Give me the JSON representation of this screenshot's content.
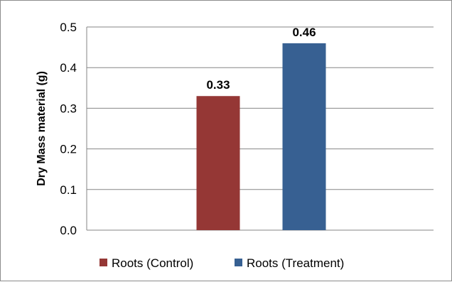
{
  "chart_data": {
    "type": "bar",
    "categories": [
      "Roots (Control)",
      "Roots (Treatment)"
    ],
    "values": [
      0.33,
      0.46
    ],
    "data_labels": [
      "0.33",
      "0.46"
    ],
    "colors": [
      "#953735",
      "#376092"
    ],
    "ylabel": "Dry Mass material (g)",
    "ylim": [
      0,
      0.5
    ],
    "yticks": [
      "0.0",
      "0.1",
      "0.2",
      "0.3",
      "0.4",
      "0.5"
    ],
    "grid": true,
    "legend_position": "bottom"
  }
}
